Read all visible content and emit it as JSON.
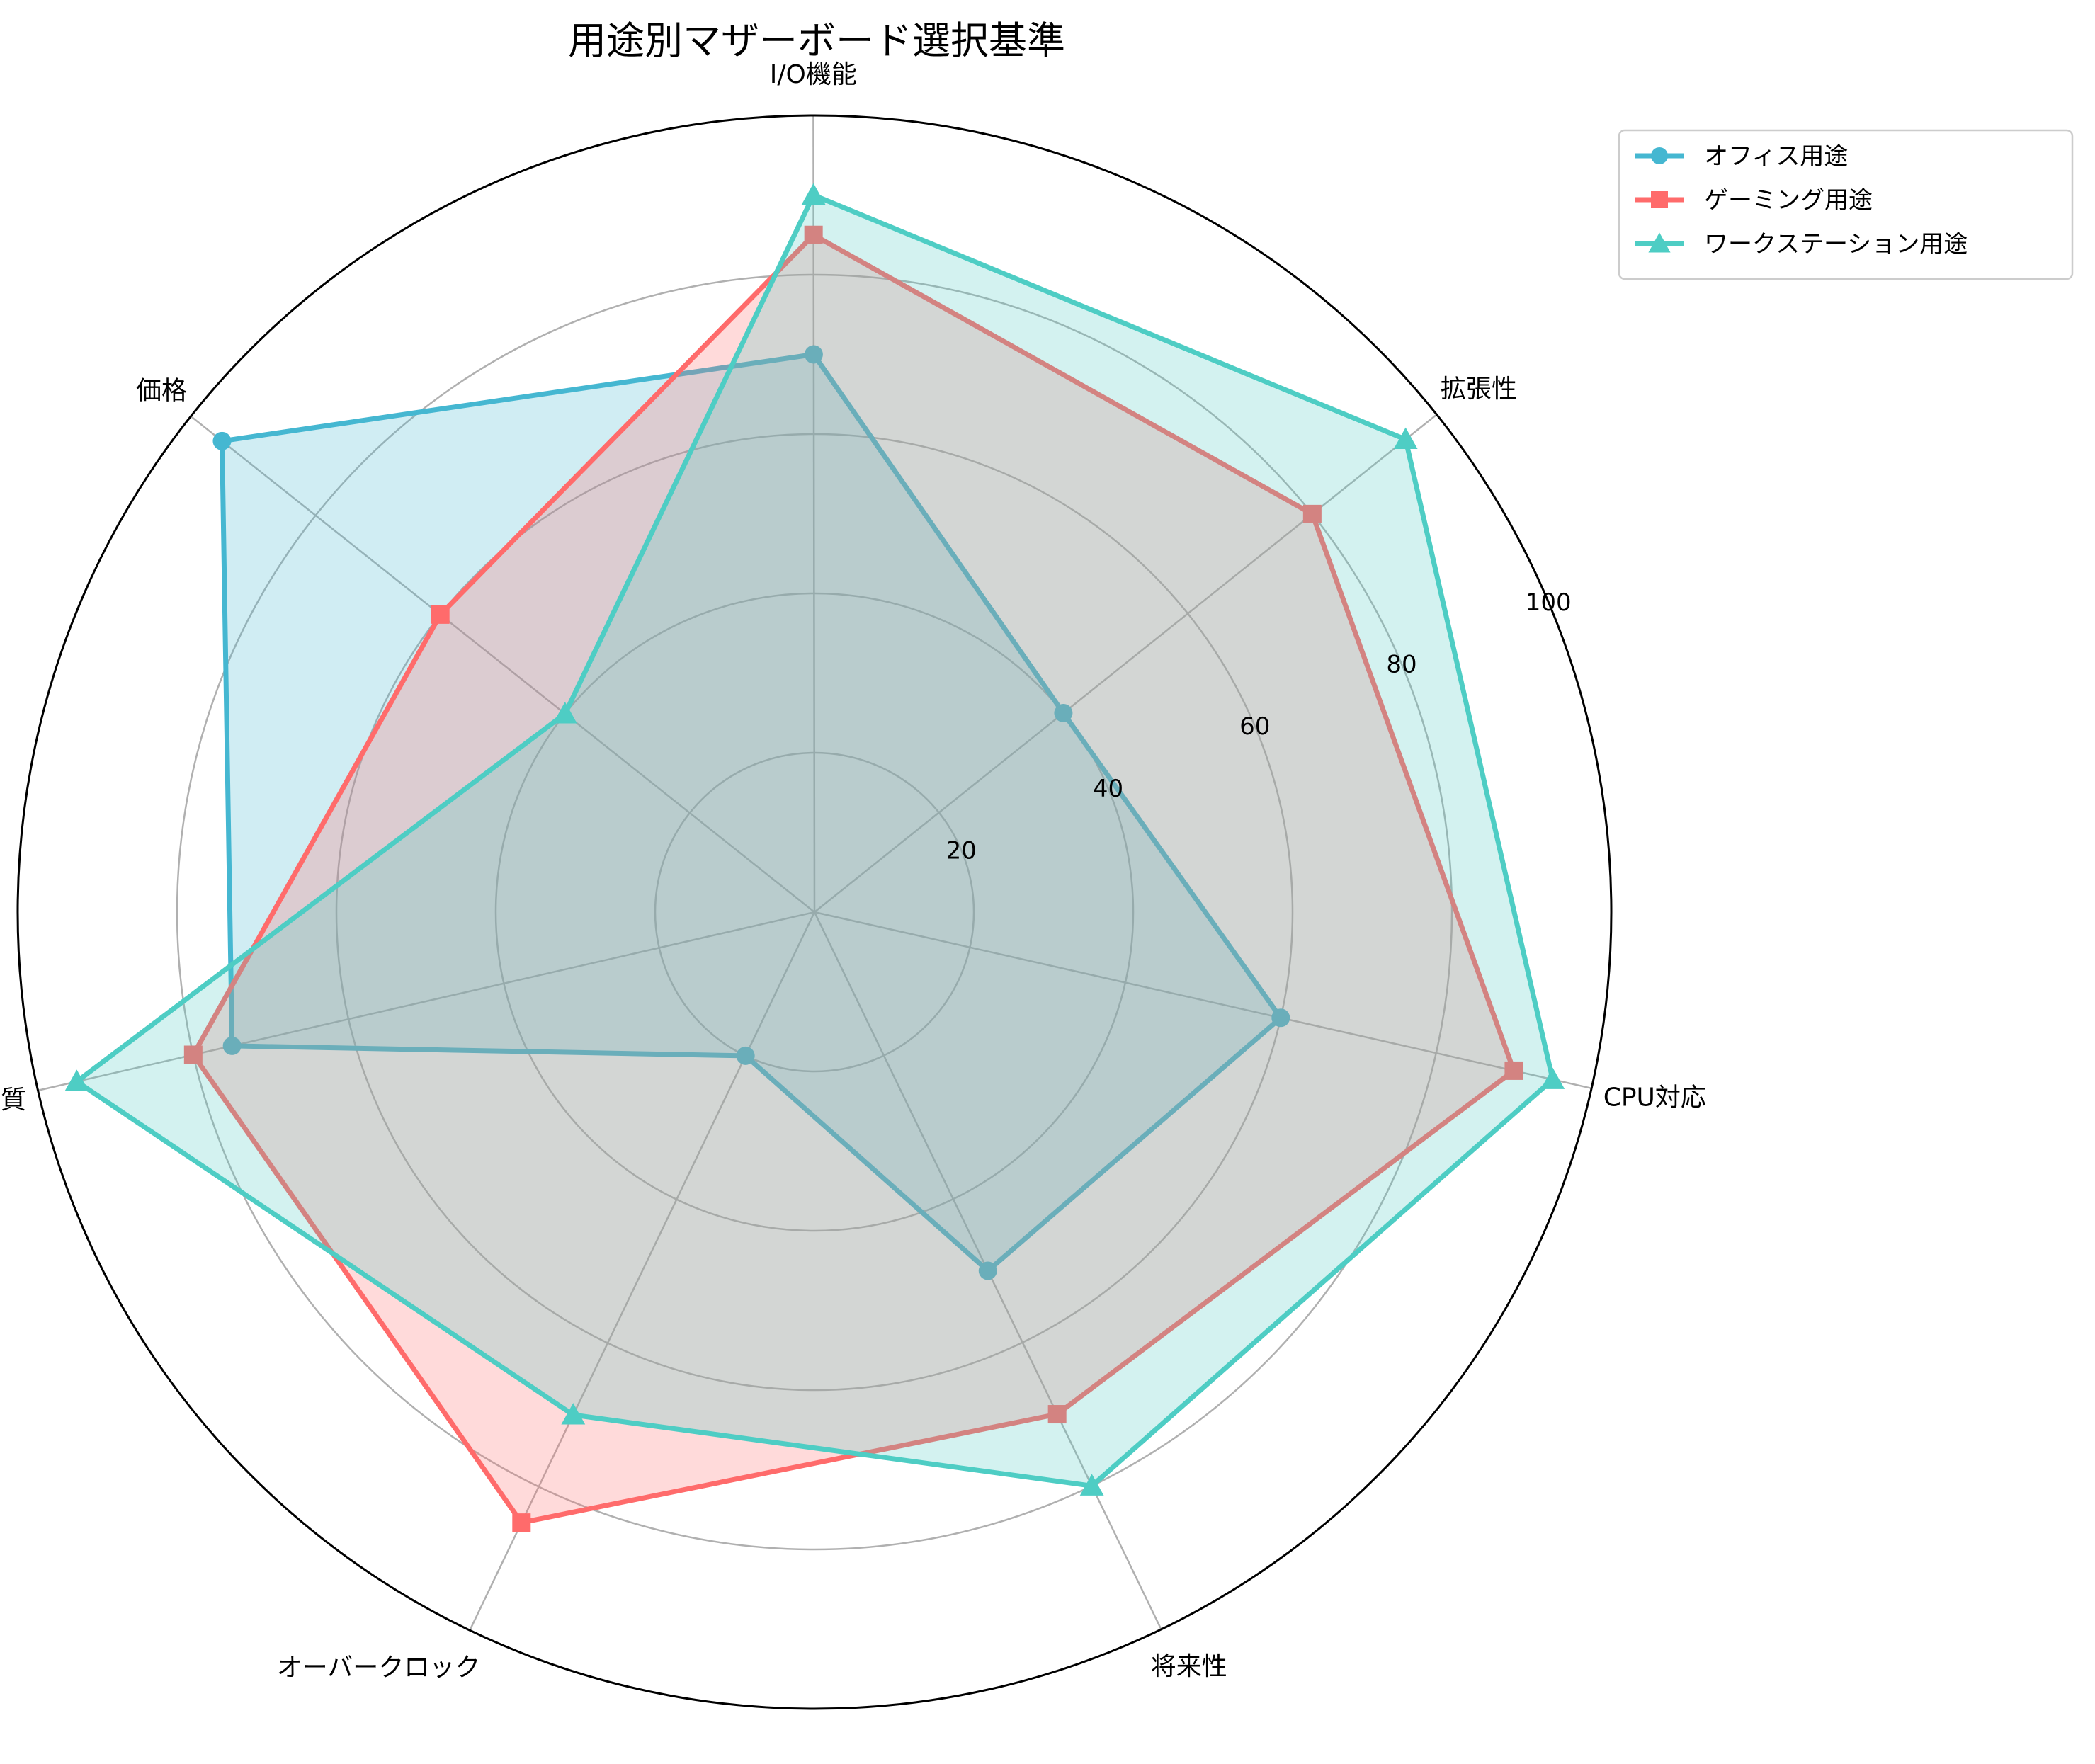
{
  "chart_data": {
    "type": "radar",
    "title": "用途別マザーボード選択基準",
    "axes": [
      "CPU対応",
      "拡張性",
      "I/O機能",
      "価格",
      "品質",
      "オーバークロック",
      "将来性"
    ],
    "rlim": [
      0,
      100
    ],
    "rticks": [
      20,
      40,
      60,
      80,
      100
    ],
    "grid": true,
    "legend_position": "top-right",
    "series": [
      {
        "name": "オフィス用途",
        "values": [
          60,
          40,
          70,
          95,
          75,
          20,
          50
        ],
        "color": "#45B7D1",
        "marker": "circle"
      },
      {
        "name": "ゲーミング用途",
        "values": [
          90,
          80,
          85,
          60,
          80,
          85,
          70
        ],
        "color": "#FF6B6B",
        "marker": "square"
      },
      {
        "name": "ワークステーション用途",
        "values": [
          95,
          95,
          90,
          40,
          95,
          70,
          80
        ],
        "color": "#4ECDC4",
        "marker": "triangle"
      }
    ]
  }
}
